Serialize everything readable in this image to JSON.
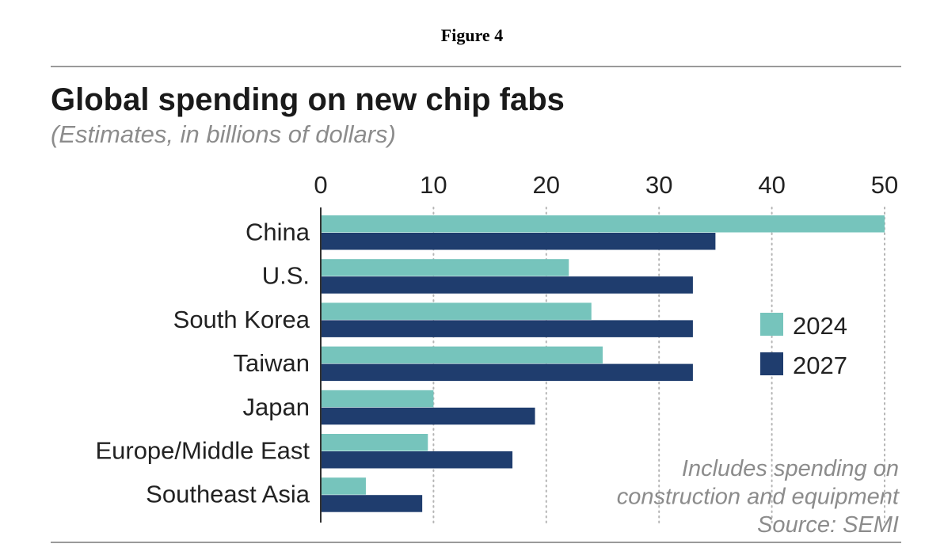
{
  "figure_label": "Figure 4",
  "colors": {
    "series_2024": "#76c4bc",
    "series_2027": "#1f3d6e",
    "grid": "#b5b5b5",
    "axis": "#333333",
    "note": "#8c8c8c"
  },
  "chart_data": {
    "type": "bar",
    "orientation": "horizontal",
    "title": "Global spending on new chip fabs",
    "subtitle": "(Estimates, in billions of dollars)",
    "categories": [
      "China",
      "U.S.",
      "South Korea",
      "Taiwan",
      "Japan",
      "Europe/Middle East",
      "Southeast Asia"
    ],
    "series": [
      {
        "name": "2024",
        "values": [
          50,
          22,
          24,
          25,
          10,
          9.5,
          4
        ]
      },
      {
        "name": "2027",
        "values": [
          35,
          33,
          33,
          33,
          19,
          17,
          9
        ]
      }
    ],
    "xlim": [
      0,
      50
    ],
    "xticks": [
      0,
      10,
      20,
      30,
      40,
      50
    ],
    "grid": true,
    "grid_style": "dotted",
    "legend_position": "right",
    "note_lines": [
      "Includes spending on",
      "construction and equipment",
      "Source: SEMI"
    ]
  }
}
